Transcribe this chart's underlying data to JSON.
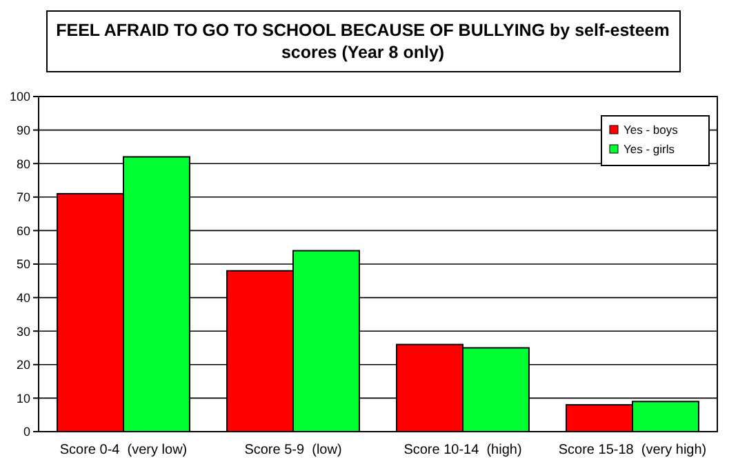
{
  "chart_data": {
    "type": "bar",
    "title": "FEEL AFRAID TO GO TO SCHOOL BECAUSE OF BULLYING by self-esteem scores (Year 8 only)",
    "categories": [
      "Score 0-4  (very low)",
      "Score 5-9  (low)",
      "Score 10-14  (high)",
      "Score 15-18  (very high)"
    ],
    "series": [
      {
        "name": "Yes - boys",
        "color": "#ff0000",
        "values": [
          71,
          48,
          26,
          8
        ]
      },
      {
        "name": "Yes - girls",
        "color": "#00ff33",
        "values": [
          82,
          54,
          25,
          9
        ]
      }
    ],
    "ylim": [
      0,
      100
    ],
    "yticks": [
      0,
      10,
      20,
      30,
      40,
      50,
      60,
      70,
      80,
      90,
      100
    ],
    "grid": "y",
    "legend": "top right"
  }
}
